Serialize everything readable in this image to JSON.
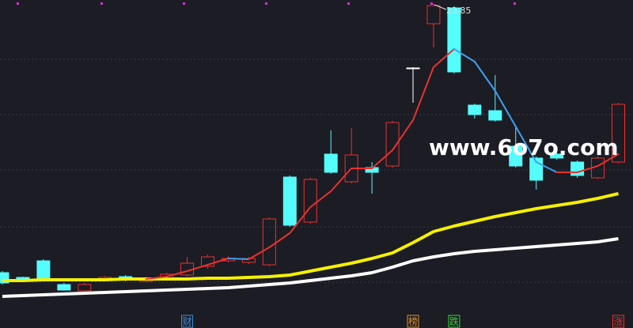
{
  "chart_data": {
    "type": "candlestick",
    "ylim": [
      7.45,
      24.05
    ],
    "yticks": [
      21.05,
      18.25,
      15.45,
      12.57,
      9.77
    ],
    "grid": true,
    "up_color": "#e8322e",
    "down_color": "#54fcfc",
    "flat_color": "#ffffff",
    "open": [
      10.25,
      10.01,
      10.85,
      9.65,
      9.33,
      9.89,
      10.05,
      9.81,
      9.97,
      10.13,
      10.57,
      10.85,
      10.77,
      10.65,
      15.09,
      12.81,
      16.25,
      14.85,
      15.57,
      15.65,
      20.61,
      22.85,
      23.65,
      18.73,
      18.45,
      16.65,
      16.05,
      16.25,
      15.85,
      15.05,
      15.85
    ],
    "high": [
      10.33,
      10.05,
      10.93,
      9.73,
      9.73,
      10.09,
      10.13,
      10.05,
      10.25,
      11.05,
      11.17,
      11.09,
      11.05,
      13.05,
      15.17,
      15.05,
      17.45,
      17.57,
      15.85,
      17.93,
      20.65,
      23.85,
      23.73,
      18.81,
      20.25,
      17.65,
      16.13,
      16.65,
      15.93,
      16.13,
      18.85
    ],
    "low": [
      9.65,
      9.81,
      9.93,
      9.33,
      9.25,
      9.85,
      9.81,
      9.77,
      9.89,
      10.05,
      10.45,
      10.77,
      10.69,
      10.57,
      12.57,
      12.73,
      15.25,
      14.77,
      14.25,
      15.57,
      18.85,
      21.65,
      20.33,
      18.05,
      17.89,
      15.57,
      14.45,
      15.97,
      15.05,
      14.97,
      15.77
    ],
    "close": [
      9.73,
      9.85,
      9.97,
      9.37,
      9.65,
      10.01,
      9.89,
      9.97,
      10.17,
      10.73,
      11.05,
      10.97,
      10.97,
      12.97,
      12.65,
      14.97,
      15.33,
      16.21,
      15.33,
      17.85,
      20.61,
      23.77,
      20.41,
      18.25,
      17.97,
      15.65,
      14.93,
      16.05,
      15.17,
      16.05,
      18.77
    ],
    "lines": [
      {
        "color": "#ffffff",
        "values": [
          9.05,
          9.09,
          9.13,
          9.17,
          9.21,
          9.25,
          9.29,
          9.33,
          9.37,
          9.41,
          9.45,
          9.49,
          9.57,
          9.65,
          9.73,
          9.85,
          9.97,
          10.09,
          10.25,
          10.53,
          10.85,
          11.05,
          11.21,
          11.33,
          11.41,
          11.49,
          11.57,
          11.65,
          11.73,
          11.81,
          11.97
        ]
      },
      {
        "color": "#f5f000",
        "values": [
          9.85,
          9.85,
          9.89,
          9.89,
          9.89,
          9.89,
          9.93,
          9.93,
          9.93,
          9.93,
          9.97,
          9.97,
          10.01,
          10.05,
          10.13,
          10.33,
          10.53,
          10.73,
          10.97,
          11.25,
          11.77,
          12.33,
          12.61,
          12.85,
          13.09,
          13.29,
          13.49,
          13.65,
          13.81,
          14.01,
          14.25
        ]
      },
      {
        "color": "#e8322e",
        "fall_color": "#3fa0f0",
        "values": [
          null,
          null,
          null,
          null,
          null,
          null,
          null,
          9.93,
          10.05,
          10.33,
          10.65,
          10.97,
          10.93,
          11.53,
          12.25,
          13.57,
          14.37,
          15.53,
          15.53,
          16.45,
          17.97,
          20.65,
          21.57,
          20.93,
          19.45,
          17.65,
          15.85,
          15.33,
          15.33,
          15.65,
          16.25
        ]
      }
    ],
    "annotation": "23.85",
    "watermark": "www.6o7o.com",
    "markers": [
      {
        "label": "财",
        "candle": 9,
        "color": "#3f8fe0"
      },
      {
        "label": "榜",
        "candle": 20,
        "color": "#e0902e"
      },
      {
        "label": "跌",
        "candle": 22,
        "color": "#3cd03c"
      },
      {
        "label": "涨",
        "candle": 30,
        "color": "#e8322e"
      }
    ]
  }
}
